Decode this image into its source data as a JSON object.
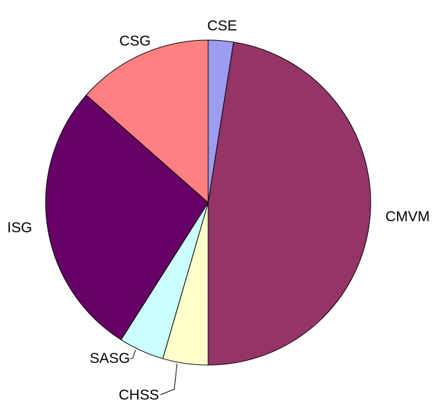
{
  "chart_data": {
    "type": "pie",
    "title": "",
    "direction": "clockwise",
    "start": "top",
    "slices": [
      {
        "label": "CSE",
        "value": 2.5,
        "color": "#9C9CF0"
      },
      {
        "label": "CMVM",
        "value": 47.5,
        "color": "#953466"
      },
      {
        "label": "CHSS",
        "value": 4.5,
        "color": "#FFFFCC"
      },
      {
        "label": "SASG",
        "value": 4.5,
        "color": "#CCFFFF"
      },
      {
        "label": "ISG",
        "value": 27.5,
        "color": "#660066"
      },
      {
        "label": "CSG",
        "value": 13.5,
        "color": "#FF8080"
      }
    ]
  }
}
